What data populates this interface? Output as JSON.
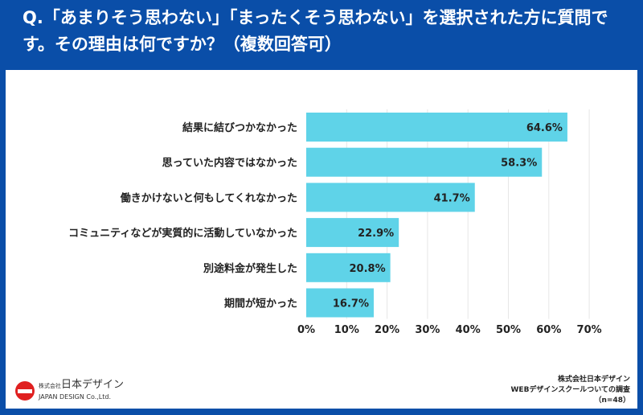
{
  "header": {
    "title": "Q.「あまりそう思わない」「まったくそう思わない」を選択された方に質問です。その理由は何ですか？（複数回答可）"
  },
  "chart_data": {
    "type": "bar",
    "orientation": "horizontal",
    "categories": [
      "結果に結びつかなかった",
      "思っていた内容ではなかった",
      "働きかけないと何もしてくれなかった",
      "コミュニティなどが実質的に活動していなかった",
      "別途料金が発生した",
      "期間が短かった"
    ],
    "values": [
      64.6,
      58.3,
      41.7,
      22.9,
      20.8,
      16.7
    ],
    "value_labels": [
      "64.6%",
      "58.3%",
      "41.7%",
      "22.9%",
      "20.8%",
      "16.7%"
    ],
    "xlim": [
      0,
      70
    ],
    "xticks": [
      "0%",
      "10%",
      "20%",
      "30%",
      "40%",
      "50%",
      "60%",
      "70%"
    ],
    "grid": true,
    "bar_color": "#5fd3e8",
    "title": "",
    "xlabel": "",
    "ylabel": ""
  },
  "logo": {
    "name_small": "株式会社",
    "name": "日本デザイン",
    "name_en": "JAPAN DESIGN Co.,Ltd.",
    "color": "#e02020"
  },
  "source": {
    "line1": "株式会社日本デザイン",
    "line2": "WEBデザインスクールついての調査",
    "line3": "（n=48）"
  },
  "colors": {
    "background": "#0a4ea8"
  }
}
